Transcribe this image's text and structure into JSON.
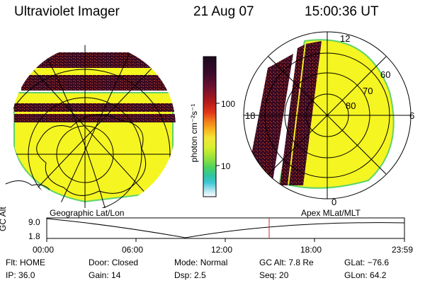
{
  "header": {
    "instrument": "Ultraviolet Imager",
    "date": "21 Aug 07",
    "time": "15:00:36 UT"
  },
  "colorbar": {
    "unit_label": "photon cm⁻²s⁻¹",
    "ticks": [
      "100",
      "10"
    ],
    "colors": [
      "#1a0a1e",
      "#3b0a2a",
      "#6e1030",
      "#b01a1a",
      "#e2361a",
      "#f07c1c",
      "#f7b320",
      "#f2e63a",
      "#d8ef2f",
      "#9be23b",
      "#4fd35d",
      "#2fc4a0",
      "#3ec7d7",
      "#a9e2ee",
      "#ffffff"
    ]
  },
  "left_map": {
    "caption": "Geographic Lat/Lon",
    "fill_color": "#f5f521",
    "rim_color": "#5fd36b",
    "band_color": "#3a0a22",
    "band_speckle": "#c8381e"
  },
  "right_map": {
    "caption": "Apex  MLat/MLT",
    "mlt_labels": {
      "top": "12",
      "left": "18",
      "right": "6",
      "bottom": "0"
    },
    "lat_labels": [
      "60",
      "70",
      "80"
    ],
    "fill_color": "#f5f521",
    "rim_color": "#5fd36b",
    "band_color": "#3a0a22"
  },
  "altitude_plot": {
    "y_label": "GC Alt",
    "y_ticks": [
      "9.0",
      "1.8"
    ],
    "x_ticks": [
      "00:00",
      "06:00",
      "12:00",
      "18:00",
      "23:59"
    ],
    "marker_color": "#d02a2a"
  },
  "status": {
    "row1": [
      {
        "label": "Flt:",
        "value": "HOME"
      },
      {
        "label": "Door:",
        "value": "Closed"
      },
      {
        "label": "Mode:",
        "value": "Normal"
      },
      {
        "label": "GC Alt:",
        "value": "7.8 Re"
      },
      {
        "label": "GLat:",
        "value": "−76.6"
      }
    ],
    "row2": [
      {
        "label": "IP:",
        "value": "36.0"
      },
      {
        "label": "Gain:",
        "value": "14"
      },
      {
        "label": "Dsp:",
        "value": "2.5"
      },
      {
        "label": "Seq:",
        "value": "20"
      },
      {
        "label": "GLon:",
        "value": "64.2"
      }
    ]
  }
}
